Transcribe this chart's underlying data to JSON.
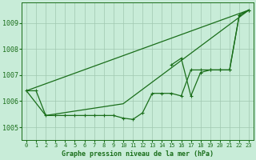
{
  "title": "Graphe pression niveau de la mer (hPa)",
  "background_color": "#c8ecd8",
  "grid_color": "#a0c8b0",
  "line_color": "#1a6e1a",
  "x_labels": [
    "0",
    "1",
    "2",
    "3",
    "4",
    "5",
    "6",
    "7",
    "8",
    "9",
    "10",
    "11",
    "12",
    "13",
    "14",
    "15",
    "16",
    "17",
    "18",
    "19",
    "20",
    "21",
    "22",
    "23"
  ],
  "ylim": [
    1004.5,
    1009.8
  ],
  "yticks": [
    1005,
    1006,
    1007,
    1008,
    1009
  ],
  "diagonal_line": [
    [
      0,
      1006.4
    ],
    [
      23,
      1009.5
    ]
  ],
  "crossing_line": [
    [
      0,
      1006.4
    ],
    [
      2,
      1005.45
    ],
    [
      10,
      1005.9
    ],
    [
      23,
      1009.5
    ]
  ],
  "flat_markers": [
    1006.4,
    1006.4,
    1005.45,
    1005.45,
    1005.45,
    1005.45,
    1005.45,
    1005.45,
    1005.45,
    1005.45,
    1005.35,
    1005.3,
    1005.55,
    1006.3,
    1006.3,
    1006.3,
    1006.2,
    1007.2,
    1007.2,
    1007.2,
    1007.2,
    1007.2,
    1009.3,
    1009.5
  ],
  "zigzag_markers": [
    null,
    null,
    null,
    null,
    null,
    null,
    null,
    null,
    null,
    null,
    null,
    null,
    null,
    null,
    null,
    1007.4,
    1007.65,
    1006.2,
    1007.1,
    1007.2,
    1007.2,
    1007.2,
    1009.3,
    1009.5
  ]
}
